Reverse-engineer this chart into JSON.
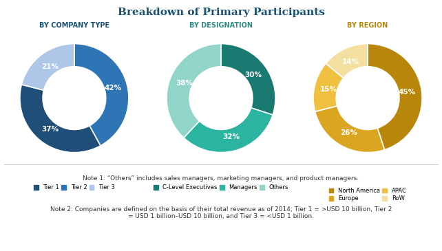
{
  "title": "Breakdown of Primary Participants",
  "title_color": "#1a5276",
  "background_color": "#ffffff",
  "charts": [
    {
      "subtitle": "BY COMPANY TYPE",
      "subtitle_color": "#1a5276",
      "values": [
        42,
        37,
        21
      ],
      "colors": [
        "#2e75b6",
        "#1f4e79",
        "#aec6e8"
      ],
      "labels": [
        "42%",
        "37%",
        "21%"
      ],
      "legend": [
        "Tier 1",
        "Tier 2",
        "Tier 3"
      ],
      "legend_colors": [
        "#1f4e79",
        "#2e75b6",
        "#aec6e8"
      ]
    },
    {
      "subtitle": "BY DESIGNATION",
      "subtitle_color": "#2e8b82",
      "values": [
        30,
        32,
        38
      ],
      "colors": [
        "#1a7a72",
        "#2bb5a0",
        "#90d5c8"
      ],
      "labels": [
        "30%",
        "32%",
        "38%"
      ],
      "legend": [
        "C-Level Executives",
        "Managers",
        "Others"
      ],
      "legend_colors": [
        "#1a7a72",
        "#2bb5a0",
        "#90d5c8"
      ]
    },
    {
      "subtitle": "BY REGION",
      "subtitle_color": "#b8860b",
      "values": [
        45,
        26,
        15,
        14
      ],
      "colors": [
        "#b8860b",
        "#daa520",
        "#f0c040",
        "#f5dfa0"
      ],
      "labels": [
        "45%",
        "26%",
        "15%",
        "14%"
      ],
      "legend_col1": [
        "North America",
        "APAC"
      ],
      "legend_col2": [
        "Europe",
        "RoW"
      ],
      "legend_colors_col1": [
        "#b8860b",
        "#f0c040"
      ],
      "legend_colors_col2": [
        "#daa520",
        "#f5dfa0"
      ]
    }
  ],
  "note1": "Note 1: “Others” includes sales managers, marketing managers, and product managers.",
  "note2": "Note 2: Companies are defined on the basis of their total revenue as of 2014; Tier 1 = >USD 10 billion, Tier 2\n= USD 1 billion–USD 10 billion, and Tier 3 = <USD 1 billion."
}
